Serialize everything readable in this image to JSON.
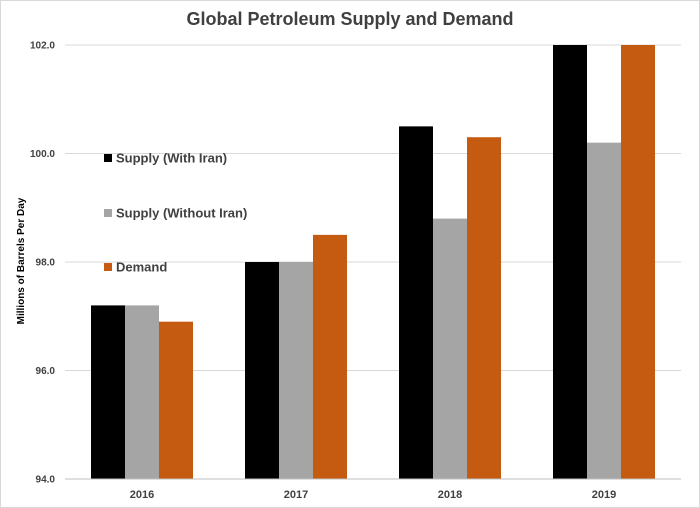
{
  "chart_data": {
    "type": "bar",
    "title": "Global Petroleum Supply and Demand",
    "ylabel": "Millions of Barrels Per Day",
    "xlabel": "",
    "categories": [
      "2016",
      "2017",
      "2018",
      "2019"
    ],
    "ylim": [
      94.0,
      102.0
    ],
    "yticks": [
      "94.0",
      "96.0",
      "98.0",
      "100.0",
      "102.0"
    ],
    "grid": true,
    "legend_position": "left",
    "series": [
      {
        "name": "Supply (With Iran)",
        "color": "#000000",
        "values": [
          97.2,
          98.0,
          100.5,
          102.0
        ]
      },
      {
        "name": "Supply (Without Iran)",
        "color": "#a5a5a5",
        "values": [
          97.2,
          98.0,
          98.8,
          100.2
        ]
      },
      {
        "name": "Demand",
        "color": "#c55a11",
        "values": [
          96.9,
          98.5,
          100.3,
          102.0
        ]
      }
    ]
  }
}
